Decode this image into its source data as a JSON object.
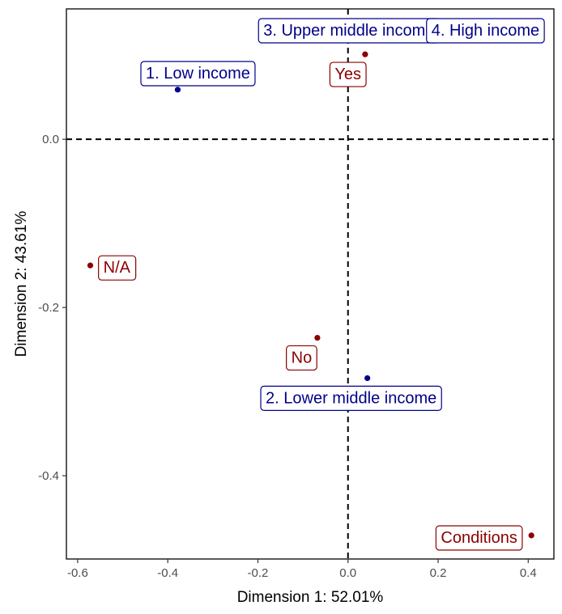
{
  "chart_data": {
    "type": "scatter",
    "xlabel": "Dimension 1: 52.01%",
    "ylabel": "Dimension 2: 43.61%",
    "xlim": [
      -0.625,
      0.457
    ],
    "ylim": [
      -0.499,
      0.155
    ],
    "x_ticks": [
      -0.6,
      -0.4,
      -0.2,
      0.0,
      0.2,
      0.4
    ],
    "x_tick_labels": [
      "-0.6",
      "-0.4",
      "-0.2",
      "0.0",
      "0.2",
      "0.4"
    ],
    "y_ticks": [
      -0.4,
      -0.2,
      0.0
    ],
    "y_tick_labels": [
      "-0.4",
      "-0.2",
      "0.0"
    ],
    "grid": false,
    "reference_lines": {
      "x": 0,
      "y": 0,
      "style": "dashed"
    },
    "series": [
      {
        "color": "#00008B",
        "points": [
          {
            "label": "1. Low income",
            "x": -0.378,
            "y": 0.059,
            "label_x": -0.333,
            "label_y": 0.079
          },
          {
            "label": "2. Lower middle income",
            "x": 0.043,
            "y": -0.284,
            "label_x": 0.007,
            "label_y": -0.307
          },
          {
            "label": "3. Upper middle income",
            "x": 0.075,
            "y": 0.118,
            "label_x": 0.002,
            "label_y": 0.13
          },
          {
            "label": "4. High income",
            "x": 0.275,
            "y": 0.125,
            "label_x": 0.305,
            "label_y": 0.13
          }
        ]
      },
      {
        "color": "#8B0000",
        "points": [
          {
            "label": "Yes",
            "x": 0.038,
            "y": 0.101,
            "label_x": 0.0,
            "label_y": 0.078
          },
          {
            "label": "N/A",
            "x": -0.572,
            "y": -0.15,
            "label_x": -0.513,
            "label_y": -0.152
          },
          {
            "label": "No",
            "x": -0.068,
            "y": -0.236,
            "label_x": -0.103,
            "label_y": -0.259
          },
          {
            "label": "Conditions",
            "x": 0.407,
            "y": -0.471,
            "label_x": 0.291,
            "label_y": -0.473
          }
        ]
      }
    ]
  }
}
